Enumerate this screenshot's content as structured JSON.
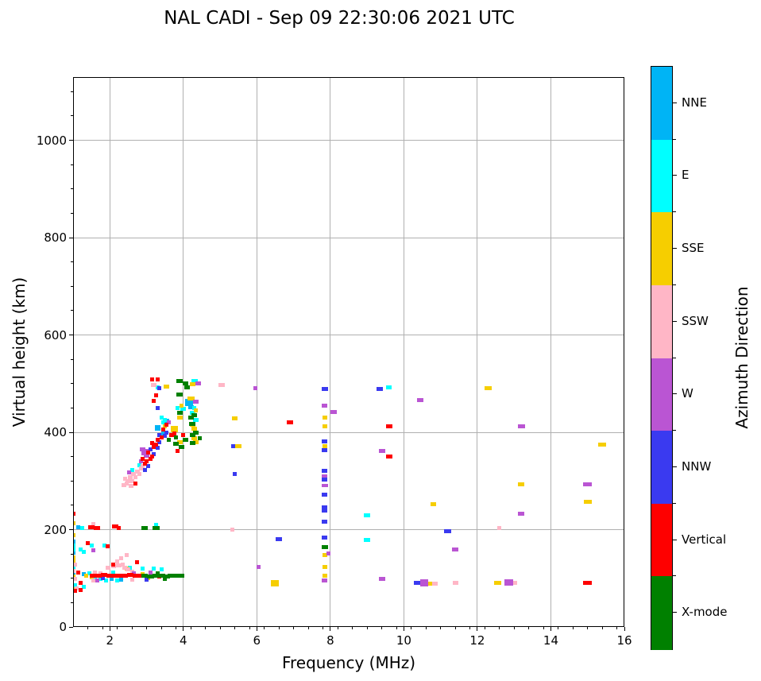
{
  "title": "NAL CADI - Sep 09 22:30:06 2021 UTC",
  "axes": {
    "xlabel": "Frequency (MHz)",
    "ylabel": "Virtual height (km)",
    "x_ticks": [
      2,
      4,
      6,
      8,
      10,
      12,
      14,
      16
    ],
    "y_ticks": [
      0,
      200,
      400,
      600,
      800,
      1000
    ],
    "xlim": [
      1,
      16
    ],
    "ylim": [
      0,
      1130
    ],
    "x_minor_step": 0.4,
    "y_minor_step": 50,
    "grid": true,
    "grid_color": "#b0b0b0"
  },
  "colorbar": {
    "label": "Azimuth Direction",
    "categories": [
      {
        "name": "NNE",
        "color": "#00b4f5"
      },
      {
        "name": "E",
        "color": "#00ffff"
      },
      {
        "name": "SSE",
        "color": "#f6ce00"
      },
      {
        "name": "SSW",
        "color": "#ffb6c6"
      },
      {
        "name": "W",
        "color": "#ba55d3"
      },
      {
        "name": "NNW",
        "color": "#3a3af0"
      },
      {
        "name": "Vertical",
        "color": "#fe0000"
      },
      {
        "name": "X-mode",
        "color": "#008000"
      }
    ]
  },
  "chart_data": {
    "type": "scatter",
    "title": "NAL CADI - Sep 09 22:30:06 2021 UTC",
    "xlabel": "Frequency (MHz)",
    "ylabel": "Virtual height (km)",
    "xlim": [
      1,
      16
    ],
    "ylim": [
      0,
      1130
    ],
    "legend_position": "right-colorbar",
    "point_note": "points are [freq_MHz, virtual_height_km, px_width_optional, px_height_optional]",
    "series": [
      {
        "name": "NNE",
        "color": "#00b4f5",
        "points": [
          [
            1.0,
            176
          ],
          [
            1.0,
            152
          ],
          [
            1.02,
            110
          ],
          [
            1.15,
            205
          ],
          [
            1.3,
            108
          ],
          [
            2.05,
            98
          ],
          [
            2.3,
            97
          ],
          [
            3.3,
            409,
            7,
            7
          ],
          [
            3.45,
            398
          ],
          [
            3.55,
            423,
            7
          ],
          [
            4.15,
            462,
            10,
            9
          ],
          [
            4.2,
            452,
            7
          ]
        ]
      },
      {
        "name": "E",
        "color": "#00ffff",
        "points": [
          [
            1.0,
            168
          ],
          [
            1.0,
            160
          ],
          [
            1.0,
            122
          ],
          [
            1.02,
            104
          ],
          [
            1.05,
            86
          ],
          [
            1.25,
            203
          ],
          [
            1.2,
            160
          ],
          [
            1.3,
            155
          ],
          [
            1.3,
            82
          ],
          [
            1.45,
            110
          ],
          [
            1.5,
            167
          ],
          [
            1.6,
            100
          ],
          [
            1.75,
            98
          ],
          [
            1.85,
            167
          ],
          [
            1.9,
            95
          ],
          [
            2.1,
            112
          ],
          [
            2.2,
            95
          ],
          [
            2.55,
            121
          ],
          [
            2.62,
            322
          ],
          [
            2.8,
            332
          ],
          [
            2.9,
            120
          ],
          [
            3.2,
            120
          ],
          [
            3.25,
            210
          ],
          [
            3.4,
            118
          ],
          [
            3.3,
            493
          ],
          [
            3.4,
            430
          ],
          [
            3.45,
            420
          ],
          [
            3.5,
            425
          ],
          [
            3.85,
            450
          ],
          [
            4.0,
            448,
            7
          ],
          [
            4.25,
            440,
            7
          ],
          [
            4.3,
            506,
            8
          ],
          [
            4.3,
            450
          ],
          [
            4.35,
            425,
            7
          ],
          [
            9.0,
            230,
            8
          ],
          [
            9.0,
            179,
            8
          ],
          [
            9.6,
            492,
            7
          ]
        ]
      },
      {
        "name": "SSE",
        "color": "#f6ce00",
        "points": [
          [
            1.0,
            213
          ],
          [
            1.0,
            188
          ],
          [
            1.0,
            143
          ],
          [
            1.0,
            136
          ],
          [
            1.0,
            104
          ],
          [
            1.05,
            78
          ],
          [
            1.35,
            105
          ],
          [
            1.5,
            102
          ],
          [
            2.45,
            120
          ],
          [
            2.9,
            108
          ],
          [
            3.05,
            100
          ],
          [
            3.5,
            412
          ],
          [
            3.55,
            494,
            7
          ],
          [
            3.75,
            407,
            9,
            8
          ],
          [
            3.9,
            430,
            7
          ],
          [
            3.9,
            380,
            7
          ],
          [
            3.95,
            455
          ],
          [
            4.2,
            470,
            9
          ],
          [
            4.25,
            499,
            7
          ],
          [
            4.25,
            415,
            7
          ],
          [
            4.3,
            408,
            7
          ],
          [
            4.3,
            388,
            7
          ],
          [
            4.35,
            380,
            7
          ],
          [
            4.35,
            445
          ],
          [
            5.4,
            428,
            7
          ],
          [
            5.5,
            372,
            8
          ],
          [
            6.5,
            90,
            10,
            8
          ],
          [
            7.85,
            430,
            6
          ],
          [
            7.85,
            413,
            6
          ],
          [
            7.85,
            371,
            6
          ],
          [
            7.85,
            148,
            6
          ],
          [
            7.85,
            124,
            6
          ],
          [
            7.85,
            105,
            6
          ],
          [
            10.7,
            89,
            7
          ],
          [
            10.8,
            253,
            7
          ],
          [
            12.3,
            490,
            9
          ],
          [
            12.55,
            90,
            9
          ],
          [
            13.2,
            293,
            8
          ],
          [
            15.0,
            257,
            10
          ],
          [
            15.4,
            375,
            10
          ]
        ]
      },
      {
        "name": "SSW",
        "color": "#ffb6c6",
        "points": [
          [
            1.05,
            128
          ],
          [
            1.0,
            115
          ],
          [
            1.05,
            98
          ],
          [
            1.1,
            80
          ],
          [
            1.55,
            211
          ],
          [
            1.55,
            95
          ],
          [
            1.6,
            112
          ],
          [
            1.75,
            110
          ],
          [
            1.95,
            122,
            6
          ],
          [
            2.1,
            125,
            6
          ],
          [
            2.2,
            135
          ],
          [
            2.25,
            126,
            7
          ],
          [
            2.3,
            142
          ],
          [
            2.35,
            129
          ],
          [
            2.4,
            122,
            6
          ],
          [
            2.45,
            148
          ],
          [
            2.5,
            118,
            6
          ],
          [
            2.6,
            114
          ],
          [
            2.6,
            97
          ],
          [
            2.38,
            292,
            6
          ],
          [
            2.45,
            295
          ],
          [
            2.5,
            300,
            7
          ],
          [
            2.42,
            305
          ],
          [
            2.55,
            308,
            6
          ],
          [
            2.58,
            290,
            6
          ],
          [
            2.6,
            300
          ],
          [
            2.65,
            315,
            6
          ],
          [
            2.7,
            308
          ],
          [
            2.75,
            320,
            6
          ],
          [
            2.8,
            315
          ],
          [
            2.85,
            325,
            6
          ],
          [
            2.9,
            330
          ],
          [
            3.2,
            498,
            7
          ],
          [
            5.05,
            497,
            8
          ],
          [
            5.33,
            200
          ],
          [
            10.85,
            89,
            7
          ],
          [
            11.4,
            90,
            7
          ],
          [
            12.6,
            204
          ],
          [
            13.0,
            90,
            7
          ]
        ]
      },
      {
        "name": "W",
        "color": "#ba55d3",
        "points": [
          [
            1.55,
            157
          ],
          [
            1.65,
            95
          ],
          [
            2.52,
            318
          ],
          [
            2.65,
            110
          ],
          [
            2.85,
            340
          ],
          [
            2.9,
            365,
            7
          ],
          [
            2.95,
            360,
            9,
            8
          ],
          [
            3.0,
            352,
            7
          ],
          [
            3.1,
            112
          ],
          [
            3.6,
            420
          ],
          [
            4.35,
            463,
            7
          ],
          [
            4.4,
            500,
            7
          ],
          [
            5.95,
            490
          ],
          [
            6.05,
            123
          ],
          [
            7.85,
            455,
            7
          ],
          [
            7.85,
            310,
            7
          ],
          [
            7.85,
            290,
            8,
            4
          ],
          [
            7.95,
            151
          ],
          [
            7.85,
            95,
            7
          ],
          [
            8.1,
            441,
            8
          ],
          [
            9.4,
            362,
            8
          ],
          [
            9.4,
            98,
            8
          ],
          [
            10.45,
            467,
            8
          ],
          [
            10.55,
            91,
            10,
            9
          ],
          [
            11.4,
            160,
            8
          ],
          [
            12.85,
            92,
            11,
            8
          ],
          [
            13.2,
            413,
            9
          ],
          [
            13.2,
            233,
            8
          ],
          [
            15.0,
            293,
            11
          ]
        ]
      },
      {
        "name": "NNW",
        "color": "#3a3af0",
        "points": [
          [
            1.8,
            100
          ],
          [
            2.95,
            322
          ],
          [
            3.0,
            97
          ],
          [
            3.05,
            330
          ],
          [
            3.1,
            365
          ],
          [
            3.2,
            355
          ],
          [
            3.3,
            368
          ],
          [
            3.3,
            450
          ],
          [
            3.35,
            380
          ],
          [
            3.35,
            395
          ],
          [
            3.35,
            490
          ],
          [
            3.5,
            393
          ],
          [
            3.55,
            400
          ],
          [
            5.35,
            371
          ],
          [
            5.4,
            315
          ],
          [
            6.6,
            181,
            8
          ],
          [
            7.85,
            489,
            8
          ],
          [
            7.85,
            381,
            7
          ],
          [
            7.85,
            363,
            7
          ],
          [
            7.85,
            321,
            7
          ],
          [
            7.85,
            303,
            7
          ],
          [
            7.85,
            272,
            7
          ],
          [
            7.85,
            246,
            7
          ],
          [
            7.85,
            240,
            7
          ],
          [
            7.85,
            217,
            7
          ],
          [
            7.85,
            183,
            7
          ],
          [
            9.35,
            489,
            8
          ],
          [
            10.35,
            90,
            8
          ],
          [
            11.2,
            196,
            9
          ]
        ]
      },
      {
        "name": "Vertical",
        "color": "#fe0000",
        "points": [
          [
            1.0,
            232
          ],
          [
            1.05,
            75
          ],
          [
            1.15,
            112
          ],
          [
            1.2,
            76
          ],
          [
            1.2,
            90
          ],
          [
            1.4,
            172
          ],
          [
            1.5,
            205,
            8
          ],
          [
            1.55,
            106,
            8
          ],
          [
            1.65,
            204,
            8
          ],
          [
            1.7,
            105,
            8
          ],
          [
            1.85,
            107,
            8
          ],
          [
            1.95,
            165
          ],
          [
            2.0,
            106,
            9
          ],
          [
            2.1,
            128
          ],
          [
            2.15,
            207,
            8
          ],
          [
            2.2,
            106,
            9
          ],
          [
            2.25,
            204
          ],
          [
            2.4,
            106,
            9
          ],
          [
            2.55,
            107,
            8
          ],
          [
            2.7,
            106,
            8
          ],
          [
            2.7,
            295
          ],
          [
            2.75,
            133
          ],
          [
            2.85,
            105,
            7
          ],
          [
            2.9,
            345
          ],
          [
            2.95,
            335
          ],
          [
            3.0,
            340
          ],
          [
            3.05,
            358
          ],
          [
            3.1,
            345
          ],
          [
            3.15,
            350
          ],
          [
            3.15,
            378
          ],
          [
            3.15,
            508
          ],
          [
            3.2,
            370
          ],
          [
            3.2,
            464
          ],
          [
            3.25,
            375
          ],
          [
            3.25,
            476
          ],
          [
            3.3,
            385
          ],
          [
            3.3,
            508
          ],
          [
            3.35,
            103
          ],
          [
            3.4,
            390
          ],
          [
            3.45,
            405
          ],
          [
            3.55,
            415
          ],
          [
            3.7,
            394,
            7
          ],
          [
            3.75,
            398
          ],
          [
            3.85,
            362
          ],
          [
            4.0,
            395
          ],
          [
            6.9,
            420,
            8
          ],
          [
            9.6,
            413,
            8
          ],
          [
            9.6,
            350,
            8
          ],
          [
            15.0,
            90,
            11
          ]
        ]
      },
      {
        "name": "X-mode",
        "color": "#008000",
        "points": [
          [
            2.95,
            106,
            8
          ],
          [
            2.95,
            204,
            8
          ],
          [
            3.1,
            104,
            9
          ],
          [
            3.25,
            106,
            9
          ],
          [
            3.25,
            204,
            9
          ],
          [
            3.3,
            110
          ],
          [
            3.4,
            105,
            9
          ],
          [
            3.5,
            98
          ],
          [
            3.55,
            104,
            9
          ],
          [
            3.6,
            385
          ],
          [
            3.7,
            105,
            11
          ],
          [
            3.8,
            376,
            7
          ],
          [
            3.8,
            390
          ],
          [
            3.85,
            105,
            9
          ],
          [
            3.9,
            440,
            7
          ],
          [
            3.9,
            477,
            8
          ],
          [
            3.9,
            506,
            8
          ],
          [
            3.95,
            105,
            8
          ],
          [
            3.95,
            370,
            7
          ],
          [
            4.05,
            385,
            7
          ],
          [
            4.05,
            500,
            7
          ],
          [
            4.1,
            492,
            7
          ],
          [
            4.2,
            430,
            7
          ],
          [
            4.25,
            395,
            7
          ],
          [
            4.25,
            418,
            8
          ],
          [
            4.25,
            378,
            7
          ],
          [
            4.3,
            435,
            7
          ],
          [
            4.35,
            400,
            7
          ],
          [
            4.45,
            388
          ],
          [
            7.85,
            164,
            8
          ]
        ]
      }
    ]
  }
}
